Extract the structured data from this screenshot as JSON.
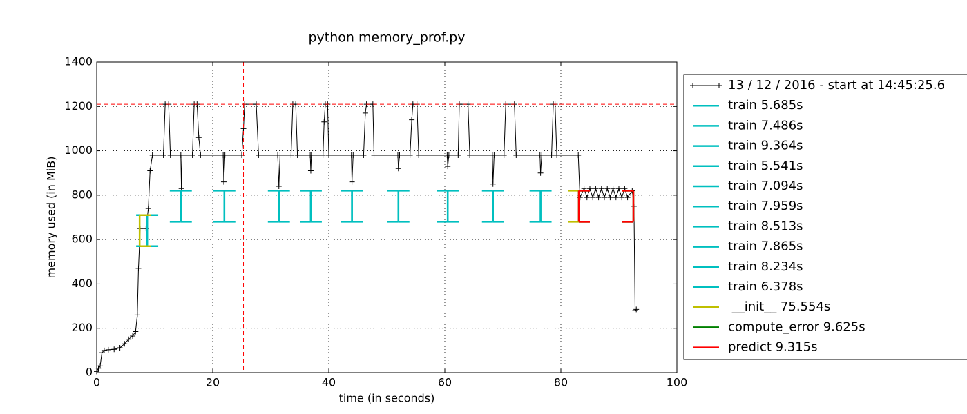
{
  "chart_data": {
    "type": "line",
    "title": "python memory_prof.py",
    "x_label": "time (in seconds)",
    "y_label": "memory used (in MiB)",
    "xlim": [
      0,
      100
    ],
    "ylim": [
      0,
      1400
    ],
    "xticks": [
      0,
      20,
      40,
      60,
      80,
      100
    ],
    "yticks": [
      0,
      200,
      400,
      600,
      800,
      1000,
      1200,
      1400
    ],
    "grid": true,
    "legend": "outside right",
    "peak_memory": 1210,
    "peak_time": 25.3,
    "peak_color": "#ff0000",
    "series": [
      {
        "name": "13 / 12 / 2016 - start at 14:45:25.6",
        "color": "#000000",
        "x": [
          0,
          0.3,
          0.6,
          0.9,
          1.3,
          2,
          3,
          4,
          4.8,
          5.5,
          6.2,
          6.7,
          7.0,
          7.2,
          7.5,
          8.5,
          8.9,
          9.2,
          9.6,
          11.5,
          11.8,
          12.4,
          12.7,
          14.5,
          14.6,
          14.7,
          16.5,
          16.8,
          17.3,
          17.6,
          17.9,
          21.8,
          21.9,
          22.1,
          25.0,
          25.3,
          25.5,
          27.5,
          27.9,
          31.2,
          31.4,
          31.6,
          33.5,
          33.8,
          34.3,
          34.6,
          36.8,
          36.9,
          37.0,
          39.0,
          39.2,
          39.4,
          39.8,
          40.0,
          43.9,
          44.0,
          44.2,
          46.0,
          46.3,
          46.5,
          47.6,
          47.8,
          51.9,
          52.0,
          52.2,
          54.0,
          54.3,
          54.5,
          55.2,
          55.5,
          60.4,
          60.5,
          60.7,
          62.3,
          62.5,
          64.0,
          64.3,
          68.2,
          68.3,
          68.5,
          70.2,
          70.5,
          72.0,
          72.3,
          76.4,
          76.5,
          76.7,
          78.4,
          78.7,
          79.0,
          79.3,
          83.0,
          83.3,
          84,
          84.5,
          85,
          85.5,
          86,
          86.5,
          87,
          87.5,
          88,
          88.5,
          89,
          89.5,
          90,
          90.5,
          91,
          91.5,
          92.3,
          92.6,
          92.8,
          93.0
        ],
        "values": [
          5,
          20,
          30,
          90,
          100,
          103,
          105,
          112,
          130,
          150,
          165,
          185,
          260,
          470,
          650,
          650,
          740,
          910,
          980,
          980,
          1210,
          1210,
          980,
          980,
          830,
          980,
          980,
          1210,
          1210,
          1060,
          980,
          980,
          860,
          980,
          980,
          1100,
          1210,
          1210,
          980,
          980,
          840,
          980,
          980,
          1210,
          1210,
          980,
          980,
          910,
          980,
          980,
          1130,
          1210,
          1210,
          980,
          980,
          860,
          980,
          980,
          1170,
          1210,
          1210,
          980,
          980,
          920,
          980,
          980,
          1140,
          1210,
          1210,
          980,
          980,
          930,
          980,
          980,
          1210,
          1210,
          980,
          980,
          850,
          980,
          980,
          1210,
          1210,
          980,
          980,
          900,
          980,
          980,
          1210,
          1210,
          980,
          980,
          790,
          830,
          790,
          830,
          790,
          830,
          790,
          830,
          790,
          830,
          790,
          830,
          790,
          830,
          790,
          830,
          790,
          820,
          750,
          280,
          285
        ]
      }
    ],
    "functions": [
      {
        "name": "train 5.685s",
        "color": "#00bfbf",
        "start": [
          8.7,
          570,
          710
        ],
        "end": [
          8.7,
          570,
          710
        ]
      },
      {
        "name": "train 7.486s",
        "color": "#00bfbf",
        "start": [
          14.5,
          680,
          820
        ],
        "end": [
          14.5,
          680,
          820
        ]
      },
      {
        "name": "train 9.364s",
        "color": "#00bfbf",
        "start": [
          22.0,
          680,
          820
        ],
        "end": [
          22.0,
          680,
          820
        ]
      },
      {
        "name": "train 5.541s",
        "color": "#00bfbf",
        "start": [
          31.4,
          680,
          820
        ],
        "end": [
          31.4,
          680,
          820
        ]
      },
      {
        "name": "train 7.094s",
        "color": "#00bfbf",
        "start": [
          36.9,
          680,
          820
        ],
        "end": [
          36.9,
          680,
          820
        ]
      },
      {
        "name": "train 7.959s",
        "color": "#00bfbf",
        "start": [
          44.0,
          680,
          820
        ],
        "end": [
          44.0,
          680,
          820
        ]
      },
      {
        "name": "train 8.513s",
        "color": "#00bfbf",
        "start": [
          52.0,
          680,
          820
        ],
        "end": [
          52.0,
          680,
          820
        ]
      },
      {
        "name": "train 7.865s",
        "color": "#00bfbf",
        "start": [
          60.5,
          680,
          820
        ],
        "end": [
          60.5,
          680,
          820
        ]
      },
      {
        "name": "train 8.234s",
        "color": "#00bfbf",
        "start": [
          68.3,
          680,
          820
        ],
        "end": [
          68.3,
          680,
          820
        ]
      },
      {
        "name": "train 6.378s",
        "color": "#00bfbf",
        "start": [
          76.5,
          680,
          820
        ],
        "end": [
          76.5,
          680,
          820
        ]
      },
      {
        "name": " __init__ 75.554s",
        "color": "#bfbf00",
        "start": [
          7.4,
          570,
          710
        ],
        "end": [
          83.1,
          680,
          820
        ]
      },
      {
        "name": "compute_error 9.625s",
        "color": "#008000",
        "start": [
          83.1,
          680,
          820
        ],
        "end": [
          92.5,
          680,
          820
        ]
      },
      {
        "name": "predict 9.315s",
        "color": "#ff0000",
        "start": [
          83.1,
          680,
          820
        ],
        "end": [
          92.5,
          680,
          820
        ]
      }
    ]
  }
}
